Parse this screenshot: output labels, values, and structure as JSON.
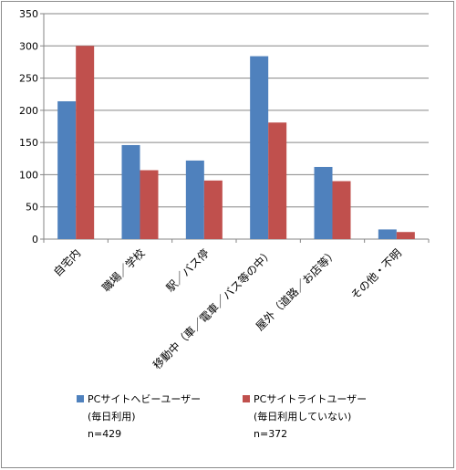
{
  "chart_data": {
    "type": "bar",
    "title": "",
    "xlabel": "",
    "ylabel": "",
    "ylim": [
      0,
      350
    ],
    "yticks": [
      0,
      50,
      100,
      150,
      200,
      250,
      300,
      350
    ],
    "grid": true,
    "legend_position": "bottom",
    "categories": [
      "自宅内",
      "職場／学校",
      "駅／バス停",
      "移動中（車／電車／バス等の中）",
      "屋外（道路／お店等）",
      "その他・不明"
    ],
    "series": [
      {
        "name": "PCサイトヘビーユーザー",
        "sub": "(毎日利用)",
        "n": "n=429",
        "color": "#4f81bd",
        "values": [
          214,
          146,
          122,
          284,
          112,
          15
        ]
      },
      {
        "name": "PCサイトライトユーザー",
        "sub": "(毎日利用していない)",
        "n": "n=372",
        "color": "#c0504d",
        "values": [
          300,
          107,
          91,
          181,
          90,
          11
        ]
      }
    ]
  }
}
